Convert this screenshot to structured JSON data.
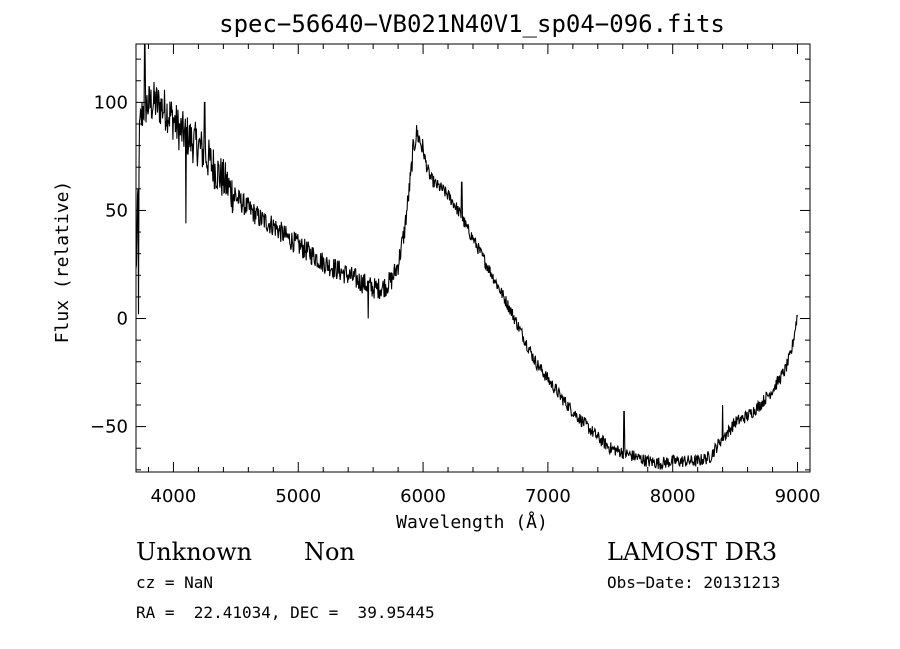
{
  "chart_data": {
    "type": "line",
    "title": "spec−56640−VB021N40V1_sp04−096.fits",
    "xlabel": "Wavelength (Å)",
    "ylabel": "Flux (relative)",
    "xlim": [
      3700,
      9100
    ],
    "ylim": [
      -71,
      127
    ],
    "xticks": [
      {
        "value": 4000,
        "label": "4000"
      },
      {
        "value": 5000,
        "label": "5000"
      },
      {
        "value": 6000,
        "label": "6000"
      },
      {
        "value": 7000,
        "label": "7000"
      },
      {
        "value": 8000,
        "label": "8000"
      },
      {
        "value": 9000,
        "label": "9000"
      }
    ],
    "yticks": [
      {
        "value": 100,
        "label": "100"
      },
      {
        "value": 50,
        "label": "50"
      },
      {
        "value": 0,
        "label": "0"
      },
      {
        "value": -50,
        "label": "−50"
      }
    ],
    "series": [
      {
        "name": "spectrum",
        "x": [
          3700,
          3730,
          3760,
          3800,
          3850,
          3900,
          3950,
          4000,
          4050,
          4100,
          4150,
          4200,
          4250,
          4300,
          4350,
          4400,
          4500,
          4600,
          4700,
          4800,
          4900,
          5000,
          5100,
          5200,
          5300,
          5400,
          5500,
          5600,
          5650,
          5700,
          5750,
          5800,
          5850,
          5880,
          5900,
          5920,
          5950,
          5970,
          6000,
          6030,
          6060,
          6100,
          6150,
          6200,
          6250,
          6300,
          6350,
          6400,
          6500,
          6600,
          6700,
          6800,
          6900,
          7000,
          7100,
          7200,
          7300,
          7400,
          7500,
          7600,
          7700,
          7800,
          7900,
          8000,
          8100,
          8200,
          8300,
          8400,
          8450,
          8500,
          8600,
          8700,
          8800,
          8900,
          8950,
          9000
        ],
        "y": [
          20,
          88,
          98,
          99,
          100,
          98,
          96,
          92,
          87,
          85,
          82,
          80,
          76,
          72,
          68,
          64,
          56,
          51,
          46,
          43,
          38,
          34,
          30,
          26,
          23,
          20,
          17,
          14,
          14,
          15,
          18,
          25,
          40,
          55,
          65,
          78,
          86,
          83,
          78,
          70,
          65,
          62,
          60,
          57,
          53,
          48,
          42,
          37,
          26,
          15,
          4,
          -8,
          -20,
          -28,
          -36,
          -43,
          -49,
          -55,
          -60,
          -62,
          -64,
          -66,
          -67,
          -66,
          -66,
          -66,
          -64,
          -55,
          -52,
          -48,
          -45,
          -40,
          -33,
          -24,
          -16,
          2
        ],
        "noise": 0.12,
        "spikes": [
          {
            "x": 3720,
            "y": 2
          },
          {
            "x": 3770,
            "y": 128
          },
          {
            "x": 4100,
            "y": 44
          },
          {
            "x": 4250,
            "y": 100
          },
          {
            "x": 5560,
            "y": 0
          },
          {
            "x": 6310,
            "y": 63
          },
          {
            "x": 7610,
            "y": -43
          },
          {
            "x": 8400,
            "y": -40
          }
        ]
      }
    ]
  },
  "info": {
    "object_class": "Unknown",
    "object_subclass": "Non",
    "survey": "LAMOST DR3",
    "cz": "cz = NaN",
    "obs_date": "Obs−Date: 20131213",
    "coords": "RA =  22.41034, DEC =  39.95445"
  }
}
